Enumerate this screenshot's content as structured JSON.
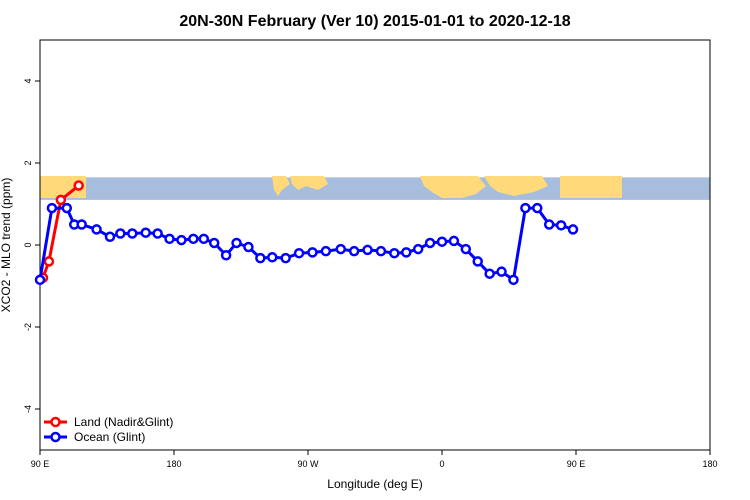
{
  "chart_data": {
    "type": "line",
    "title": "20N-30N February (Ver 10)   2015-01-01 to 2020-12-18",
    "xlabel": "Longitude (deg E)",
    "ylabel": "XCO2 - MLO trend (ppm)",
    "xlim": [
      90,
      450
    ],
    "ylim": [
      -5,
      5
    ],
    "x_ticks": [
      {
        "value": 90,
        "label": "90 E"
      },
      {
        "value": 180,
        "label": "180"
      },
      {
        "value": 270,
        "label": "90 W"
      },
      {
        "value": 360,
        "label": "0"
      },
      {
        "value": 450,
        "label": "90 E"
      },
      {
        "value": 540,
        "label": "180"
      }
    ],
    "y_ticks": [
      {
        "value": -4,
        "label": "-4"
      },
      {
        "value": -2,
        "label": "-2"
      },
      {
        "value": 0,
        "label": "0"
      },
      {
        "value": 2,
        "label": "2"
      },
      {
        "value": 4,
        "label": "4"
      }
    ],
    "grid": false,
    "legend_position": "bottom-left",
    "map_strip": {
      "y_range": [
        1.1,
        1.65
      ],
      "ocean_color": "#a7bddd",
      "land_color": "#ffd97a"
    },
    "series": [
      {
        "name": "Land (Nadir&Glint)",
        "color": "#ff0000",
        "x": [
          92,
          96,
          104,
          116,
          122
        ],
        "y": [
          -0.8,
          -0.4,
          1.1,
          1.45,
          null
        ]
      },
      {
        "name": "Ocean (Glint)",
        "color": "#0000ff",
        "x": [
          90,
          98,
          108,
          113,
          118,
          128,
          137,
          144,
          152,
          161,
          169,
          177,
          185,
          193,
          200,
          207,
          215,
          222,
          230,
          238,
          246,
          255,
          264,
          273,
          282,
          292,
          301,
          310,
          319,
          328,
          336,
          344,
          352,
          360,
          368,
          376,
          384,
          392,
          400,
          408,
          416,
          424,
          432,
          440,
          448
        ],
        "y": [
          -0.85,
          0.9,
          0.9,
          0.5,
          0.5,
          0.38,
          0.2,
          0.28,
          0.28,
          0.3,
          0.28,
          0.15,
          0.12,
          0.15,
          0.15,
          0.05,
          -0.25,
          0.05,
          -0.05,
          -0.32,
          -0.3,
          -0.32,
          -0.2,
          -0.18,
          -0.15,
          -0.1,
          -0.15,
          -0.12,
          -0.15,
          -0.2,
          -0.18,
          -0.1,
          0.05,
          0.08,
          0.1,
          -0.1,
          -0.4,
          -0.7,
          -0.65,
          -0.85,
          0.9,
          0.9,
          0.5,
          0.48,
          0.38
        ]
      }
    ]
  }
}
